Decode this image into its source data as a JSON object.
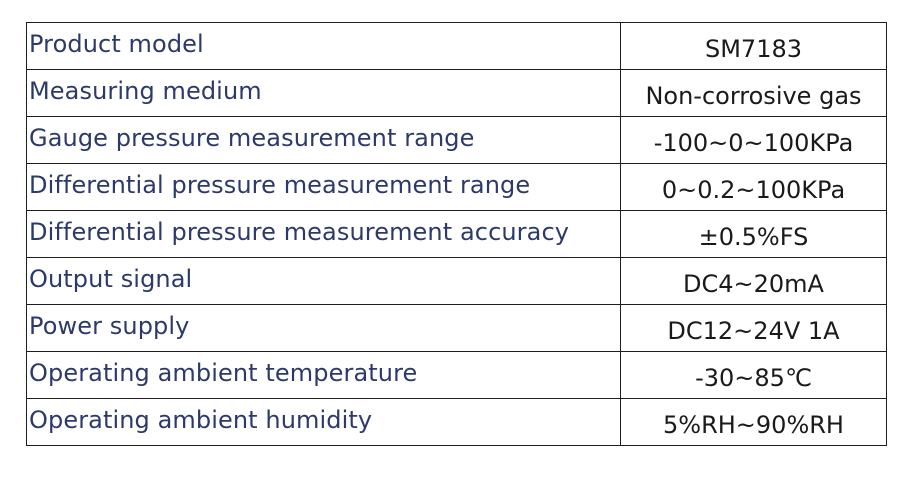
{
  "spec_table": {
    "rows": [
      {
        "label": "Product model",
        "value": "SM7183"
      },
      {
        "label": "Measuring medium",
        "value": "Non-corrosive gas"
      },
      {
        "label": "Gauge pressure measurement range",
        "value": "-100~0~100KPa"
      },
      {
        "label": "Differential pressure measurement range",
        "value": "0~0.2~100KPa"
      },
      {
        "label": "Differential pressure measurement accuracy",
        "value": "±0.5%FS"
      },
      {
        "label": "Output signal",
        "value": "DC4~20mA"
      },
      {
        "label": "Power supply",
        "value": "DC12~24V 1A"
      },
      {
        "label": "Operating ambient temperature",
        "value": "-30~85℃"
      },
      {
        "label": "Operating ambient humidity",
        "value": "5%RH~90%RH"
      }
    ]
  }
}
